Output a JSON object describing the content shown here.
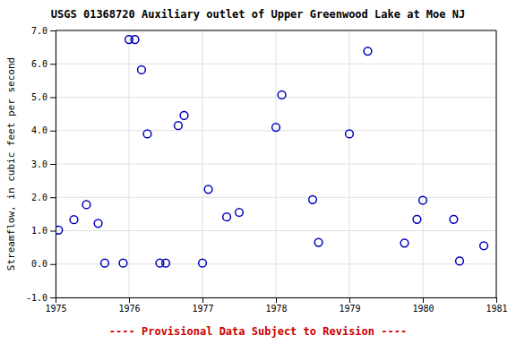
{
  "chart_data": {
    "type": "scatter",
    "title": "USGS 01368720 Auxiliary outlet of Upper Greenwood Lake at Moe NJ",
    "ylabel": "Streamflow, in cubic feet per second",
    "annotation": "---- Provisional Data Subject to Revision ----",
    "x": [
      1975.04,
      1975.25,
      1975.42,
      1975.58,
      1975.67,
      1975.92,
      1976.0,
      1976.08,
      1976.17,
      1976.25,
      1976.42,
      1976.5,
      1976.67,
      1976.75,
      1977.0,
      1977.08,
      1977.33,
      1977.5,
      1978.0,
      1978.08,
      1978.5,
      1978.58,
      1979.0,
      1979.25,
      1979.75,
      1979.92,
      1980.0,
      1980.42,
      1980.5,
      1980.83
    ],
    "values": [
      1.02,
      1.33,
      1.78,
      1.22,
      0.03,
      0.03,
      6.73,
      6.73,
      5.82,
      3.9,
      0.03,
      0.03,
      4.15,
      4.45,
      0.03,
      2.24,
      1.41,
      1.55,
      4.1,
      5.07,
      1.93,
      0.65,
      3.9,
      6.38,
      0.63,
      1.34,
      1.91,
      1.34,
      0.09,
      0.55
    ],
    "color": "#0000BB",
    "marker": "circle",
    "xlim": [
      1975,
      1981
    ],
    "ylim": [
      -1.0,
      7.0
    ],
    "xticks": [
      1975,
      1976,
      1977,
      1978,
      1979,
      1980,
      1981
    ],
    "yticks": [
      {
        "value": -1.0,
        "label": "-1.0"
      },
      {
        "value": 0.0,
        "label": "0.0"
      },
      {
        "value": 1.0,
        "label": "1.0"
      },
      {
        "value": 2.0,
        "label": "2.0"
      },
      {
        "value": 3.0,
        "label": "3.0"
      },
      {
        "value": 4.0,
        "label": "4.0"
      },
      {
        "value": 5.0,
        "label": "5.0"
      },
      {
        "value": 6.0,
        "label": "6.0"
      },
      {
        "value": 7.0,
        "label": "7.0"
      }
    ],
    "grid": true
  }
}
